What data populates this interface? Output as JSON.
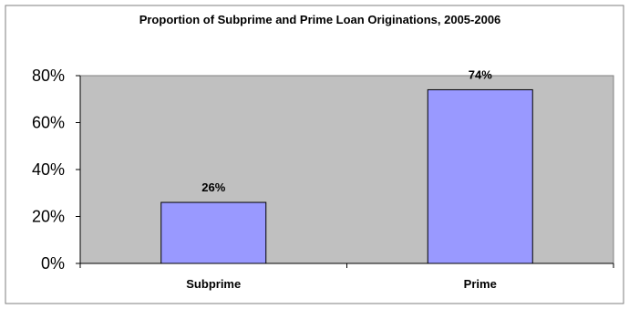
{
  "chart_data": {
    "type": "bar",
    "title": "Proportion of Subprime and Prime Loan Originations, 2005-2006",
    "categories": [
      "Subprime",
      "Prime"
    ],
    "values": [
      26,
      74
    ],
    "value_labels": [
      "26%",
      "74%"
    ],
    "ylim": [
      0,
      80
    ],
    "yticks": [
      0,
      20,
      40,
      60,
      80
    ],
    "ytick_labels": [
      "0%",
      "20%",
      "40%",
      "60%",
      "80%"
    ],
    "xlabel": "",
    "ylabel": "",
    "grid": false,
    "legend": "none",
    "colors": {
      "bar": "#9999ff",
      "plot_area": "#c0c0c0",
      "background": "#ffffff",
      "border": "#000000"
    }
  }
}
